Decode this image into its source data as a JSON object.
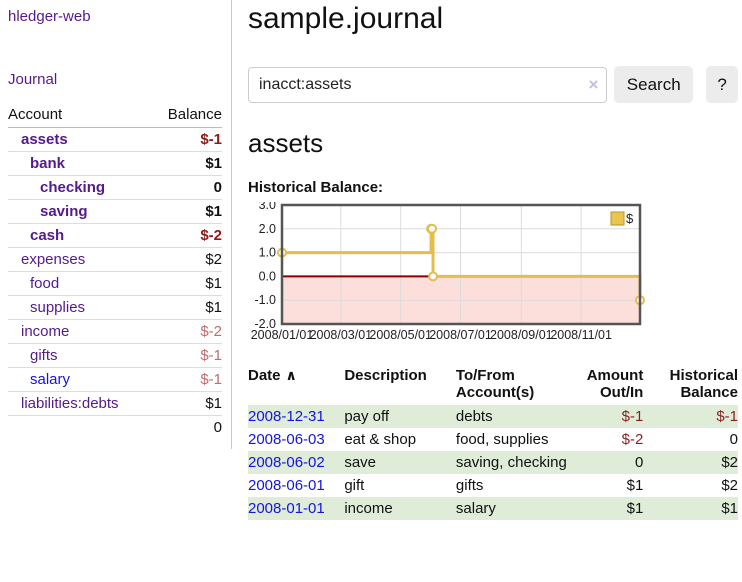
{
  "app": {
    "brand": "hledger-web",
    "nav_journal": "Journal"
  },
  "header": {
    "title": "sample.journal"
  },
  "search": {
    "query": "inacct:assets",
    "clear_icon": "×",
    "button_label": "Search",
    "help_label": "?"
  },
  "account_page": {
    "heading": "assets",
    "chart_label": "Historical Balance:"
  },
  "colors": {
    "link_purple": "#551a8b",
    "link_blue": "#1414e0",
    "negative_strong": "#8b1a1a",
    "negative_soft": "#c46a6a",
    "stripe_green": "#deecd8",
    "chart_line_gold": "#e5bd4e",
    "chart_negative_fill": "#fcdeda",
    "chart_zero_line": "#8b0000",
    "button_gray": "#ececec"
  },
  "sidebar": {
    "accounts_table": {
      "col_account": "Account",
      "col_balance": "Balance",
      "rows": [
        {
          "name": "assets",
          "balance": "$-1",
          "indent": 1,
          "bold": true,
          "name_color": "purple",
          "balance_style": "neg-strong"
        },
        {
          "name": "bank",
          "balance": "$1",
          "indent": 2,
          "bold": true,
          "name_color": "purple",
          "balance_style": "normal"
        },
        {
          "name": "checking",
          "balance": "0",
          "indent": 3,
          "bold": true,
          "name_color": "purple",
          "balance_style": "normal"
        },
        {
          "name": "saving",
          "balance": "$1",
          "indent": 3,
          "bold": true,
          "name_color": "purple",
          "balance_style": "normal"
        },
        {
          "name": "cash",
          "balance": "$-2",
          "indent": 2,
          "bold": true,
          "name_color": "purple",
          "balance_style": "neg-strong"
        },
        {
          "name": "expenses",
          "balance": "$2",
          "indent": 1,
          "bold": false,
          "name_color": "purple",
          "balance_style": "normal"
        },
        {
          "name": "food",
          "balance": "$1",
          "indent": 2,
          "bold": false,
          "name_color": "purple",
          "balance_style": "normal"
        },
        {
          "name": "supplies",
          "balance": "$1",
          "indent": 2,
          "bold": false,
          "name_color": "purple",
          "balance_style": "normal"
        },
        {
          "name": "income",
          "balance": "$-2",
          "indent": 1,
          "bold": false,
          "name_color": "purple",
          "balance_style": "neg-soft"
        },
        {
          "name": "gifts",
          "balance": "$-1",
          "indent": 2,
          "bold": false,
          "name_color": "purple",
          "balance_style": "neg-soft"
        },
        {
          "name": "salary",
          "balance": "$-1",
          "indent": 2,
          "bold": false,
          "name_color": "blue",
          "balance_style": "neg-soft"
        },
        {
          "name": "liabilities:debts",
          "balance": "$1",
          "indent": 1,
          "bold": false,
          "name_color": "purple",
          "balance_style": "normal"
        }
      ],
      "total": "0"
    }
  },
  "chart_data": {
    "type": "line",
    "title": "Historical Balance",
    "legend_entries": [
      {
        "label": "$",
        "color": "#eac54f"
      }
    ],
    "ylim": [
      -2,
      3
    ],
    "yticks": [
      "3.0",
      "2.0",
      "1.0",
      "0.0",
      "-1.0",
      "-2.0"
    ],
    "x_range": [
      "2008/01/01",
      "2008/12/31"
    ],
    "xticks": [
      "2008/01/01",
      "2008/03/01",
      "2008/05/01",
      "2008/07/01",
      "2008/09/01",
      "2008/11/01"
    ],
    "grid": true,
    "legend_position": "top-right",
    "series": [
      {
        "name": "$",
        "step": true,
        "points": [
          {
            "date": "2008/01/01",
            "value": 1
          },
          {
            "date": "2008/06/01",
            "value": 2
          },
          {
            "date": "2008/06/02",
            "value": 2
          },
          {
            "date": "2008/06/03",
            "value": 0
          },
          {
            "date": "2008/12/31",
            "value": -1
          }
        ]
      }
    ]
  },
  "register": {
    "columns": {
      "date": "Date",
      "description": "Description",
      "accounts": "To/From Account(s)",
      "amount": "Amount Out/In",
      "balance": "Historical Balance"
    },
    "sort_icon": "∧",
    "rows": [
      {
        "date": "2008-12-31",
        "description": "pay off",
        "accounts": "debts",
        "amount": "$-1",
        "balance": "$-1",
        "amount_neg": true,
        "balance_neg": true
      },
      {
        "date": "2008-06-03",
        "description": "eat & shop",
        "accounts": "food, supplies",
        "amount": "$-2",
        "balance": "0",
        "amount_neg": true,
        "balance_neg": false
      },
      {
        "date": "2008-06-02",
        "description": "save",
        "accounts": "saving, checking",
        "amount": "0",
        "balance": "$2",
        "amount_neg": false,
        "balance_neg": false
      },
      {
        "date": "2008-06-01",
        "description": "gift",
        "accounts": "gifts",
        "amount": "$1",
        "balance": "$2",
        "amount_neg": false,
        "balance_neg": false
      },
      {
        "date": "2008-01-01",
        "description": "income",
        "accounts": "salary",
        "amount": "$1",
        "balance": "$1",
        "amount_neg": false,
        "balance_neg": false
      }
    ]
  }
}
